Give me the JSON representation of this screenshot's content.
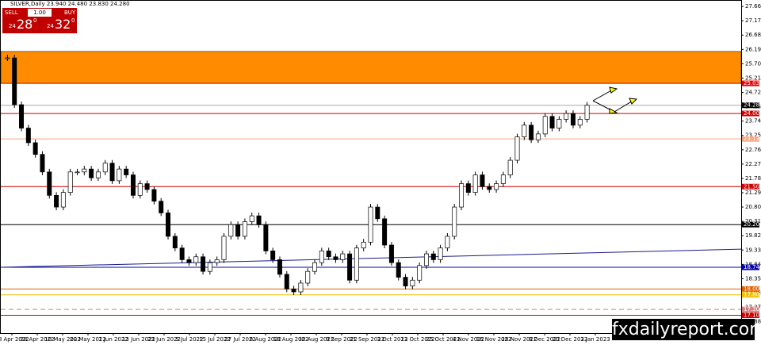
{
  "chart_data": {
    "type": "candlestick",
    "header": "SILVER,Daily 23.940 24.480 23.830 24.280",
    "ylim": [
      16.49,
      27.88
    ],
    "yticks": [
      {
        "value": 27.66,
        "label": "27.660"
      },
      {
        "value": 27.17,
        "label": "27.170"
      },
      {
        "value": 26.68,
        "label": "26.680"
      },
      {
        "value": 26.19,
        "label": "26.190"
      },
      {
        "value": 25.7,
        "label": "25.700"
      },
      {
        "value": 25.21,
        "label": "25.210"
      },
      {
        "value": 24.72,
        "label": "24.720"
      },
      {
        "value": 24.23,
        "label": "24.230"
      },
      {
        "value": 23.74,
        "label": "23.740"
      },
      {
        "value": 23.25,
        "label": "23.250"
      },
      {
        "value": 22.76,
        "label": "22.760"
      },
      {
        "value": 22.27,
        "label": "22.270"
      },
      {
        "value": 21.78,
        "label": "21.780"
      },
      {
        "value": 21.29,
        "label": "21.290"
      },
      {
        "value": 20.8,
        "label": "20.800"
      },
      {
        "value": 20.31,
        "label": "20.310"
      },
      {
        "value": 19.82,
        "label": "19.820"
      },
      {
        "value": 19.33,
        "label": "19.330"
      },
      {
        "value": 18.84,
        "label": "18.840"
      },
      {
        "value": 18.35,
        "label": "18.350"
      },
      {
        "value": 17.86,
        "label": "17.860"
      },
      {
        "value": 17.37,
        "label": "17.370"
      },
      {
        "value": 16.88,
        "label": "16.880"
      }
    ],
    "x_labels": [
      "18 Apr 2022",
      "28 Apr 2022",
      "10 May 2022",
      "20 May 2022",
      "1 Jun 2022",
      "13 Jun 2022",
      "23 Jun 2022",
      "5 Jul 2022",
      "15 Jul 2022",
      "27 Jul 2022",
      "8 Aug 2022",
      "18 Aug 2022",
      "30 Aug 2022",
      "9 Sep 2022",
      "21 Sep 2022",
      "3 Oct 2022",
      "13 Oct 2022",
      "25 Oct 2022",
      "4 Nov 2022",
      "16 Nov 2022",
      "28 Nov 2022",
      "8 Dec 2022",
      "20 Dec 2022",
      "3 Jan 2023"
    ],
    "values": [
      25.9,
      24.3,
      23.5,
      23.0,
      22.6,
      22.0,
      21.2,
      20.8,
      21.3,
      22.0,
      22.0,
      22.1,
      21.8,
      22.0,
      22.3,
      21.7,
      22.1,
      21.9,
      21.2,
      21.6,
      21.4,
      21.0,
      20.6,
      19.8,
      19.4,
      19.0,
      18.9,
      19.1,
      18.6,
      18.9,
      19.0,
      19.8,
      20.2,
      19.8,
      20.3,
      20.5,
      20.2,
      19.3,
      19.0,
      18.5,
      18.0,
      17.9,
      18.2,
      18.6,
      18.9,
      19.3,
      19.1,
      19.0,
      19.2,
      18.3,
      19.4,
      19.6,
      20.8,
      20.4,
      19.5,
      18.9,
      18.4,
      18.1,
      18.3,
      18.8,
      19.2,
      19.0,
      19.4,
      19.8,
      20.8,
      21.6,
      21.3,
      21.9,
      21.5,
      21.4,
      21.6,
      21.9,
      22.4,
      23.2,
      23.6,
      23.1,
      23.3,
      23.9,
      23.5,
      23.8,
      24.0,
      23.6,
      23.8,
      24.28
    ],
    "zone": [
      25.03,
      26.12
    ],
    "zone_color": "#ff8c00",
    "levels": [
      {
        "value": 25.03,
        "label": "25.030",
        "color": "#e00000"
      },
      {
        "value": 24.0,
        "label": "24.000",
        "color": "#cc0000"
      },
      {
        "value": 23.13,
        "label": "23.130",
        "color": "#f4a582"
      },
      {
        "value": 21.5,
        "label": "21.500",
        "color": "#cc0000"
      },
      {
        "value": 20.2,
        "label": "20.200",
        "color": "#000000"
      },
      {
        "value": 18.74,
        "label": "18.740",
        "color": "#0000aa"
      },
      {
        "value": 18.0,
        "label": "18.000",
        "color": "#e06000"
      },
      {
        "value": 17.8,
        "label": "17.800",
        "color": "#f0c000"
      },
      {
        "value": 17.3,
        "label": "17.300",
        "color": "#d08080"
      },
      {
        "value": 17.1,
        "label": "17.100",
        "color": "#cc0000"
      }
    ],
    "price": {
      "value": 24.28,
      "label": "24.280"
    },
    "trendline": [
      18.74,
      19.36
    ],
    "panel": {
      "sell": "SELL",
      "lots": "1.00",
      "buy": "BUY",
      "bid": "24",
      "bid_big": "28",
      "bid_sup": "0",
      "ask": "24",
      "ask_big": "32",
      "ask_sup": "0"
    },
    "watermark": "fxdailyreport.com"
  }
}
